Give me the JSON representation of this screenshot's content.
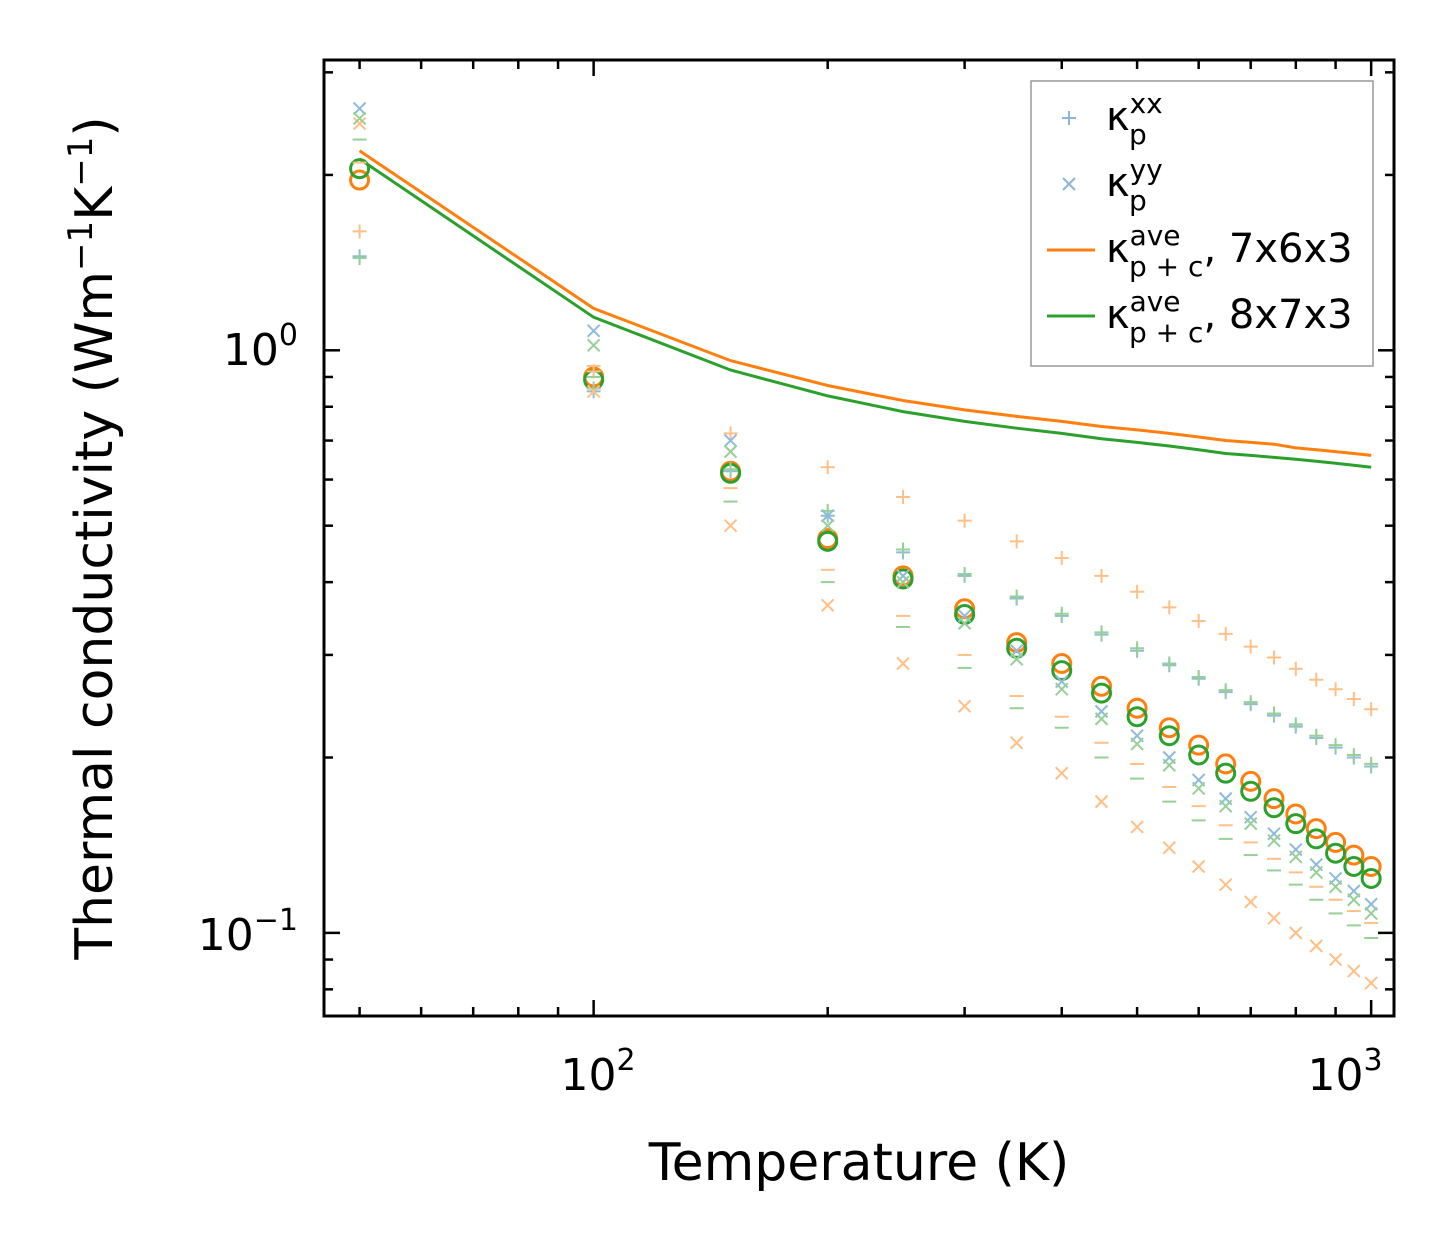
{
  "chart_data": {
    "type": "scatter",
    "xscale": "log",
    "yscale": "log",
    "xlabel": "Temperature (K)",
    "ylabel_main": "Thermal conductivity (Wm",
    "ylabel_exp1": "−1",
    "ylabel_mid": "K",
    "ylabel_exp2": "−1",
    "ylabel_end": ")",
    "xlim": [
      45,
      1070
    ],
    "ylim": [
      0.072,
      3.15
    ],
    "xticks": [
      {
        "value": 100,
        "base": "10",
        "exp": "2"
      },
      {
        "value": 1000,
        "base": "10",
        "exp": "3"
      }
    ],
    "yticks": [
      {
        "value": 0.1,
        "base": "10",
        "exp": "−1"
      },
      {
        "value": 1,
        "base": "10",
        "exp": "0"
      }
    ],
    "legend": {
      "position": "top-right",
      "entries": [
        {
          "base": "κ",
          "sup": "xx",
          "sub": "p",
          "tail": "",
          "marker": "plus",
          "color": "#8eb4d6"
        },
        {
          "base": "κ",
          "sup": "yy",
          "sub": "p",
          "tail": "",
          "marker": "x",
          "color": "#8eb4d6"
        },
        {
          "base": "κ",
          "sup": "ave",
          "sub": "p + c",
          "tail": ", 7x6x3",
          "marker": "line",
          "color": "#ff7f0e"
        },
        {
          "base": "κ",
          "sup": "ave",
          "sub": "p + c",
          "tail": ", 8x7x3",
          "marker": "line",
          "color": "#2ca02c"
        }
      ]
    },
    "colors": {
      "blue": "#1f77b4",
      "orange": "#ff7f0e",
      "green": "#2ca02c"
    },
    "x": [
      50,
      100,
      150,
      200,
      250,
      300,
      350,
      400,
      450,
      500,
      550,
      600,
      650,
      700,
      750,
      800,
      850,
      900,
      950,
      1000
    ],
    "series": [
      {
        "name": "kappa_pc_ave 7x6x3 (line)",
        "kind": "line",
        "color": "orange",
        "values": [
          2.2,
          1.18,
          0.96,
          0.87,
          0.82,
          0.79,
          0.77,
          0.755,
          0.74,
          0.73,
          0.72,
          0.71,
          0.7,
          0.695,
          0.69,
          0.68,
          0.675,
          0.67,
          0.665,
          0.66
        ]
      },
      {
        "name": "kappa_pc_ave 8x7x3 (line)",
        "kind": "line",
        "color": "green",
        "values": [
          2.13,
          1.14,
          0.925,
          0.835,
          0.785,
          0.755,
          0.735,
          0.72,
          0.705,
          0.695,
          0.685,
          0.675,
          0.665,
          0.66,
          0.655,
          0.65,
          0.645,
          0.64,
          0.635,
          0.63
        ]
      },
      {
        "name": "kappa_p_ave 7x6x3",
        "kind": "circle",
        "color": "orange",
        "values": [
          1.96,
          0.9,
          0.62,
          0.475,
          0.41,
          0.36,
          0.315,
          0.29,
          0.265,
          0.243,
          0.225,
          0.21,
          0.195,
          0.182,
          0.17,
          0.16,
          0.151,
          0.143,
          0.136,
          0.13
        ]
      },
      {
        "name": "kappa_p_ave 8x7x3",
        "kind": "circle",
        "color": "green",
        "values": [
          2.05,
          0.89,
          0.615,
          0.47,
          0.405,
          0.352,
          0.308,
          0.282,
          0.258,
          0.235,
          0.218,
          0.202,
          0.188,
          0.175,
          0.164,
          0.154,
          0.145,
          0.137,
          0.13,
          0.124
        ]
      },
      {
        "name": "kappa_p_xx 7x6x3",
        "kind": "plus",
        "color": "orange",
        "values": [
          1.6,
          0.92,
          0.72,
          0.63,
          0.56,
          0.51,
          0.47,
          0.44,
          0.41,
          0.385,
          0.362,
          0.343,
          0.326,
          0.31,
          0.297,
          0.284,
          0.272,
          0.262,
          0.252,
          0.242
        ]
      },
      {
        "name": "kappa_p_xx 8x7x3",
        "kind": "plus",
        "color": "blue",
        "values": [
          1.45,
          0.85,
          0.62,
          0.52,
          0.45,
          0.41,
          0.375,
          0.35,
          0.325,
          0.305,
          0.288,
          0.273,
          0.259,
          0.247,
          0.236,
          0.226,
          0.216,
          0.208,
          0.2,
          0.193
        ]
      },
      {
        "name": "kappa_p_xx 7x6x3 (green)",
        "kind": "plus",
        "color": "green",
        "values": [
          1.44,
          0.86,
          0.625,
          0.53,
          0.455,
          0.413,
          0.378,
          0.353,
          0.328,
          0.308,
          0.29,
          0.275,
          0.261,
          0.249,
          0.238,
          0.228,
          0.218,
          0.21,
          0.202,
          0.195
        ]
      },
      {
        "name": "kappa_p_yy 7x6x3",
        "kind": "x",
        "color": "orange",
        "values": [
          2.45,
          0.85,
          0.5,
          0.365,
          0.29,
          0.245,
          0.212,
          0.188,
          0.168,
          0.152,
          0.14,
          0.13,
          0.121,
          0.113,
          0.106,
          0.1,
          0.095,
          0.09,
          0.086,
          0.082
        ]
      },
      {
        "name": "kappa_p_yy 8x7x3",
        "kind": "x",
        "color": "blue",
        "values": [
          2.6,
          1.08,
          0.7,
          0.52,
          0.41,
          0.35,
          0.305,
          0.27,
          0.24,
          0.218,
          0.2,
          0.183,
          0.17,
          0.158,
          0.148,
          0.139,
          0.131,
          0.124,
          0.118,
          0.112
        ]
      },
      {
        "name": "kappa_p_yy 8x7x3 (green)",
        "kind": "x",
        "color": "green",
        "values": [
          2.5,
          1.02,
          0.67,
          0.5,
          0.4,
          0.34,
          0.295,
          0.262,
          0.233,
          0.211,
          0.194,
          0.177,
          0.165,
          0.154,
          0.144,
          0.135,
          0.127,
          0.12,
          0.114,
          0.108
        ]
      },
      {
        "name": "kappa_p_zz 7x6x3",
        "kind": "dash",
        "color": "orange",
        "values": [
          2.1,
          0.94,
          0.58,
          0.42,
          0.35,
          0.3,
          0.255,
          0.235,
          0.212,
          0.195,
          0.178,
          0.165,
          0.153,
          0.143,
          0.134,
          0.127,
          0.12,
          0.114,
          0.109,
          0.104
        ]
      },
      {
        "name": "kappa_p_zz 8x7x3",
        "kind": "dash",
        "color": "green",
        "values": [
          2.3,
          0.9,
          0.55,
          0.4,
          0.335,
          0.285,
          0.243,
          0.225,
          0.2,
          0.184,
          0.168,
          0.156,
          0.145,
          0.136,
          0.128,
          0.121,
          0.114,
          0.108,
          0.103,
          0.098
        ]
      }
    ]
  }
}
